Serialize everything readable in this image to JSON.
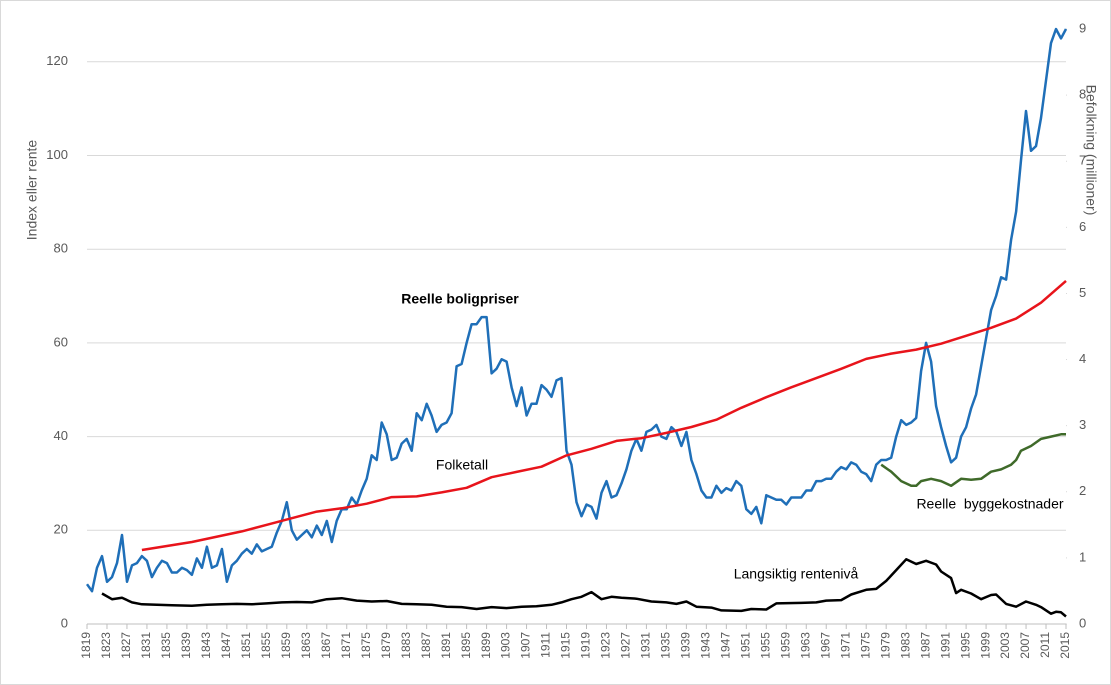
{
  "chart_data": {
    "type": "line",
    "ylabel": "Index eller rente",
    "y2label": "Befolkning (millioner)",
    "xlim": [
      1819,
      2015
    ],
    "xticks": [
      1819,
      1823,
      1827,
      1831,
      1835,
      1839,
      1843,
      1847,
      1851,
      1855,
      1859,
      1863,
      1867,
      1871,
      1875,
      1879,
      1883,
      1887,
      1891,
      1895,
      1899,
      1903,
      1907,
      1911,
      1915,
      1919,
      1923,
      1927,
      1931,
      1935,
      1939,
      1943,
      1947,
      1951,
      1955,
      1959,
      1963,
      1967,
      1971,
      1975,
      1979,
      1983,
      1987,
      1991,
      1995,
      1999,
      2003,
      2007,
      2011,
      2015
    ],
    "ylim": [
      0,
      127
    ],
    "yticks": [
      0,
      20,
      40,
      60,
      80,
      100,
      120
    ],
    "y2lim": [
      0,
      9
    ],
    "y2ticks": [
      0,
      1,
      2,
      3,
      4,
      5,
      6,
      7,
      8,
      9
    ],
    "grid": true,
    "annotations": [
      "Reelle boligpriser",
      "Folketall",
      "Reelle  byggekostnader",
      "Langsiktig rentenivå"
    ],
    "series": [
      {
        "color": "#1f6fb8",
        "axis": "y",
        "x": [
          1819,
          1820,
          1821,
          1822,
          1823,
          1824,
          1825,
          1826,
          1827,
          1828,
          1829,
          1830,
          1831,
          1832,
          1833,
          1834,
          1835,
          1836,
          1837,
          1838,
          1839,
          1840,
          1841,
          1842,
          1843,
          1844,
          1845,
          1846,
          1847,
          1848,
          1849,
          1850,
          1851,
          1852,
          1853,
          1854,
          1855,
          1856,
          1857,
          1858,
          1859,
          1860,
          1861,
          1862,
          1863,
          1864,
          1865,
          1866,
          1867,
          1868,
          1869,
          1870,
          1871,
          1872,
          1873,
          1874,
          1875,
          1876,
          1877,
          1878,
          1879,
          1880,
          1881,
          1882,
          1883,
          1884,
          1885,
          1886,
          1887,
          1888,
          1889,
          1890,
          1891,
          1892,
          1893,
          1894,
          1895,
          1896,
          1897,
          1898,
          1899,
          1900,
          1901,
          1902,
          1903,
          1904,
          1905,
          1906,
          1907,
          1908,
          1909,
          1910,
          1911,
          1912,
          1913,
          1914,
          1915,
          1916,
          1917,
          1918,
          1919,
          1920,
          1921,
          1922,
          1923,
          1924,
          1925,
          1926,
          1927,
          1928,
          1929,
          1930,
          1931,
          1932,
          1933,
          1934,
          1935,
          1936,
          1937,
          1938,
          1939,
          1940,
          1941,
          1942,
          1943,
          1944,
          1945,
          1946,
          1947,
          1948,
          1949,
          1950,
          1951,
          1952,
          1953,
          1954,
          1955,
          1956,
          1957,
          1958,
          1959,
          1960,
          1961,
          1962,
          1963,
          1964,
          1965,
          1966,
          1967,
          1968,
          1969,
          1970,
          1971,
          1972,
          1973,
          1974,
          1975,
          1976,
          1977,
          1978,
          1979,
          1980,
          1981,
          1982,
          1983,
          1984,
          1985,
          1986,
          1987,
          1988,
          1989,
          1990,
          1991,
          1992,
          1993,
          1994,
          1995,
          1996,
          1997,
          1998,
          1999,
          2000,
          2001,
          2002,
          2003,
          2004,
          2005,
          2006,
          2007,
          2008,
          2009,
          2010,
          2011,
          2012,
          2013,
          2014,
          2015
        ],
        "values": [
          8.5,
          7,
          12,
          14.5,
          9,
          10,
          13,
          19,
          9,
          12.5,
          13,
          14.5,
          13.5,
          10,
          12,
          13.5,
          13,
          11,
          11,
          12,
          11.5,
          10.5,
          14,
          12,
          16.5,
          12,
          12.5,
          16,
          9,
          12.5,
          13.5,
          15,
          16,
          15,
          17,
          15.5,
          16,
          16.5,
          19.5,
          22,
          26,
          20,
          18,
          19,
          20,
          18.5,
          21,
          19,
          22,
          17.5,
          22,
          24.5,
          24.5,
          27,
          25.5,
          28.5,
          31,
          36,
          35,
          43,
          40.5,
          35,
          35.5,
          38.5,
          39.5,
          37,
          45,
          43.5,
          47,
          44.5,
          41,
          42.5,
          43,
          45,
          55,
          55.5,
          60,
          64,
          64,
          65.5,
          65.5,
          53.5,
          54.5,
          56.5,
          56,
          50.5,
          46.5,
          50.5,
          44.5,
          47,
          47,
          51,
          50,
          48.5,
          52,
          52.5,
          37,
          34,
          26,
          23,
          25.5,
          25,
          22.5,
          28,
          30.5,
          27,
          27.5,
          30,
          33,
          37,
          39.5,
          37,
          41,
          41.5,
          42.5,
          40,
          39.5,
          42,
          41,
          38,
          41,
          35,
          32,
          28.5,
          27,
          27,
          29.5,
          28,
          29,
          28.5,
          30.5,
          29.5,
          24.5,
          23.5,
          25,
          21.5,
          27.5,
          27,
          26.5,
          26.5,
          25.5,
          27,
          27,
          27,
          28.5,
          28.5,
          30.5,
          30.5,
          31,
          31,
          32.5,
          33.5,
          33,
          34.5,
          34,
          32.5,
          32,
          30.5,
          34,
          35,
          35,
          35.5,
          40,
          43.5,
          42.5,
          43,
          44,
          54,
          60,
          56,
          46.5,
          42,
          38,
          34.5,
          35.5,
          40,
          42,
          46,
          49,
          55,
          61,
          67,
          70,
          74,
          73.5,
          82,
          88,
          99,
          109.5,
          101,
          102,
          108,
          116,
          124,
          127,
          125,
          127
        ]
      },
      {
        "color": "#e8141b",
        "axis": "y2",
        "x": [
          1830,
          1840,
          1850,
          1855,
          1860,
          1865,
          1870,
          1875,
          1880,
          1885,
          1890,
          1895,
          1900,
          1905,
          1910,
          1915,
          1920,
          1925,
          1930,
          1935,
          1940,
          1945,
          1950,
          1955,
          1960,
          1965,
          1970,
          1975,
          1980,
          1985,
          1990,
          1995,
          2000,
          2005,
          2010,
          2015
        ],
        "values": [
          1.12,
          1.24,
          1.4,
          1.5,
          1.6,
          1.7,
          1.75,
          1.82,
          1.92,
          1.93,
          1.99,
          2.06,
          2.22,
          2.3,
          2.38,
          2.55,
          2.65,
          2.77,
          2.81,
          2.89,
          2.98,
          3.09,
          3.27,
          3.43,
          3.58,
          3.72,
          3.86,
          4.01,
          4.09,
          4.15,
          4.24,
          4.36,
          4.48,
          4.62,
          4.86,
          5.19
        ]
      },
      {
        "color": "#3f6a2a",
        "axis": "y",
        "x": [
          1978,
          1980,
          1982,
          1984,
          1985,
          1986,
          1988,
          1990,
          1992,
          1994,
          1996,
          1998,
          2000,
          2002,
          2004,
          2005,
          2006,
          2008,
          2010,
          2012,
          2014,
          2015
        ],
        "values": [
          34,
          32.5,
          30.5,
          29.5,
          29.5,
          30.5,
          31,
          30.5,
          29.5,
          31,
          30.8,
          31,
          32.5,
          33,
          34,
          35,
          37,
          38,
          39.5,
          40,
          40.5,
          40.5
        ]
      },
      {
        "color": "#000000",
        "axis": "y",
        "x": [
          1822,
          1824,
          1826,
          1828,
          1830,
          1833,
          1836,
          1840,
          1843,
          1846,
          1849,
          1852,
          1855,
          1858,
          1861,
          1864,
          1867,
          1870,
          1873,
          1876,
          1879,
          1882,
          1885,
          1888,
          1891,
          1894,
          1897,
          1900,
          1903,
          1906,
          1909,
          1912,
          1914,
          1916,
          1918,
          1920,
          1922,
          1924,
          1926,
          1929,
          1932,
          1935,
          1937,
          1939,
          1941,
          1944,
          1946,
          1950,
          1952,
          1955,
          1957,
          1962,
          1965,
          1967,
          1970,
          1972,
          1975,
          1977,
          1979,
          1981,
          1983,
          1985,
          1987,
          1989,
          1990,
          1992,
          1993,
          1994,
          1996,
          1998,
          2000,
          2001,
          2003,
          2005,
          2007,
          2009,
          2010,
          2012,
          2013,
          2014,
          2015
        ],
        "values": [
          6.5,
          5.3,
          5.6,
          4.6,
          4.2,
          4.1,
          4,
          3.9,
          4.1,
          4.2,
          4.3,
          4.2,
          4.4,
          4.6,
          4.7,
          4.6,
          5.3,
          5.5,
          5,
          4.8,
          4.9,
          4.3,
          4.2,
          4.1,
          3.7,
          3.6,
          3.2,
          3.6,
          3.4,
          3.7,
          3.8,
          4.1,
          4.6,
          5.3,
          5.8,
          6.8,
          5.3,
          5.8,
          5.6,
          5.4,
          4.8,
          4.6,
          4.3,
          4.8,
          3.7,
          3.5,
          2.9,
          2.8,
          3.2,
          3.1,
          4.4,
          4.5,
          4.6,
          5,
          5.1,
          6.3,
          7.3,
          7.5,
          9.2,
          11.5,
          13.8,
          12.8,
          13.5,
          12.7,
          11.2,
          9.8,
          6.6,
          7.3,
          6.5,
          5.3,
          6.2,
          6.3,
          4.3,
          3.7,
          4.8,
          4.1,
          3.6,
          2.2,
          2.6,
          2.5,
          1.6
        ]
      }
    ]
  }
}
